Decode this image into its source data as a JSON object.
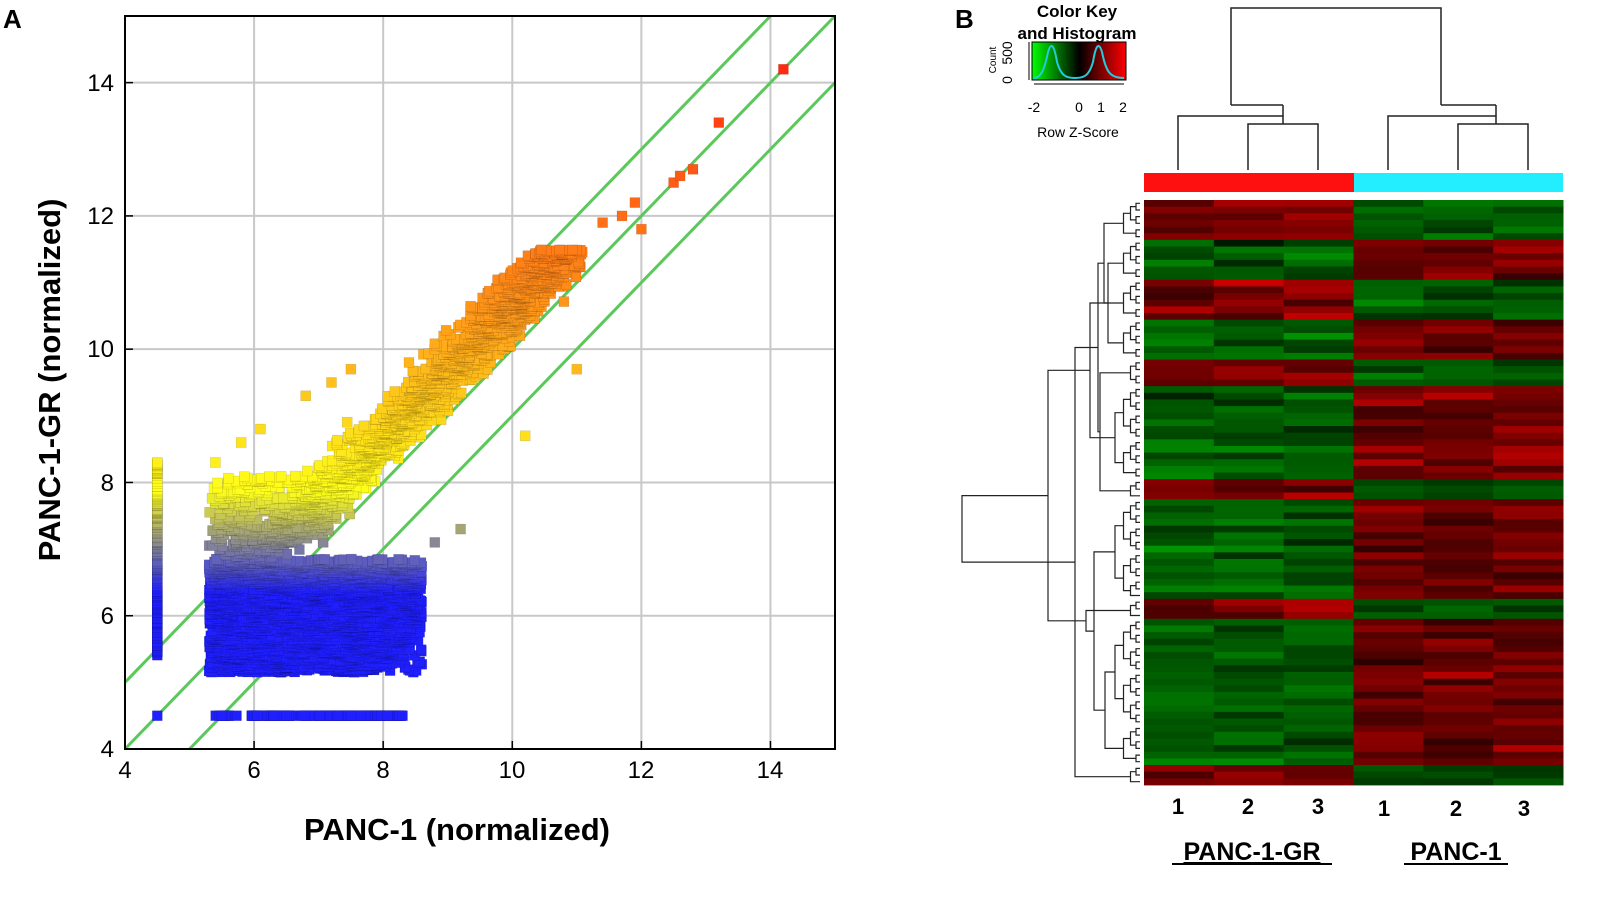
{
  "chart_data": [
    {
      "type": "scatter",
      "panel": "A",
      "xlabel": "PANC-1 (normalized)",
      "ylabel": "PANC-1-GR (normalized)",
      "xlim": [
        4,
        15
      ],
      "ylim": [
        4,
        15
      ],
      "xticks": [
        4,
        6,
        8,
        10,
        12,
        14
      ],
      "yticks": [
        4,
        6,
        8,
        10,
        12,
        14
      ],
      "grid": true,
      "reference_lines": [
        {
          "name": "y = x + 1",
          "offset": 1
        },
        {
          "name": "y = x",
          "offset": 0
        },
        {
          "name": "y = x - 1",
          "offset": -1
        }
      ],
      "line_color": "#5cc85c",
      "color_scale": [
        "#1f1fff",
        "#ffff1a",
        "#ff9a1a",
        "#ff2a10"
      ],
      "points_sample": [
        [
          14.2,
          14.2
        ],
        [
          13.2,
          13.4
        ],
        [
          12.8,
          12.7
        ],
        [
          12.6,
          12.6
        ],
        [
          12.5,
          12.5
        ],
        [
          11.9,
          12.2
        ],
        [
          12.0,
          11.8
        ],
        [
          11.7,
          12.0
        ],
        [
          11.4,
          11.9
        ],
        [
          10.8,
          11.2
        ],
        [
          10.3,
          11.1
        ],
        [
          9.9,
          10.8
        ],
        [
          10.1,
          10.4
        ],
        [
          9.4,
          10.1
        ],
        [
          9.1,
          9.9
        ],
        [
          8.8,
          10.0
        ],
        [
          8.4,
          9.8
        ],
        [
          7.5,
          9.7
        ],
        [
          7.2,
          9.5
        ],
        [
          6.8,
          9.3
        ],
        [
          6.1,
          8.8
        ],
        [
          5.8,
          8.6
        ],
        [
          5.4,
          8.3
        ],
        [
          4.5,
          8.3
        ],
        [
          10.2,
          8.7
        ],
        [
          11.0,
          9.7
        ],
        [
          9.2,
          7.3
        ],
        [
          8.8,
          7.1
        ],
        [
          8.0,
          5.5
        ],
        [
          8.4,
          5.6
        ],
        [
          4.5,
          4.5
        ],
        [
          5.5,
          4.5
        ],
        [
          6.5,
          4.5
        ],
        [
          7.5,
          4.5
        ],
        [
          8.3,
          4.5
        ]
      ]
    },
    {
      "type": "heatmap",
      "panel": "B",
      "color_key": {
        "title_line1": "Color Key",
        "title_line2": "and Histogram",
        "xlabel": "Row Z-Score",
        "ylabel": "Count",
        "ticks": [
          "-2",
          "0",
          "1",
          "2"
        ],
        "count_ticks": [
          "0",
          "500"
        ],
        "colors": [
          "#00ff00",
          "#000000",
          "#ff0000"
        ],
        "histogram_color": "#22ccdd"
      },
      "columns": [
        "1",
        "2",
        "3",
        "1",
        "2",
        "3"
      ],
      "groups": [
        {
          "name": "PANC-1-GR",
          "color": "#ff1010",
          "columns": [
            0,
            1,
            2
          ]
        },
        {
          "name": "PANC-1",
          "color": "#22eeff",
          "columns": [
            3,
            4,
            5
          ]
        }
      ],
      "value_range": [
        -2,
        2
      ],
      "row_blocks": [
        {
          "rows": 6,
          "gr_z": 1.2,
          "p_z": -1.2
        },
        {
          "rows": 6,
          "gr_z": -1.2,
          "p_z": 1.1
        },
        {
          "rows": 6,
          "gr_z": 1.3,
          "p_z": -1.0
        },
        {
          "rows": 6,
          "gr_z": -1.1,
          "p_z": 1.0
        },
        {
          "rows": 4,
          "gr_z": 1.2,
          "p_z": -1.1
        },
        {
          "rows": 14,
          "gr_z": -1.2,
          "p_z": 1.1
        },
        {
          "rows": 3,
          "gr_z": 1.2,
          "p_z": -1.0
        },
        {
          "rows": 15,
          "gr_z": -1.1,
          "p_z": 1.0
        },
        {
          "rows": 3,
          "gr_z": 1.2,
          "p_z": -1.1
        },
        {
          "rows": 22,
          "gr_z": -1.1,
          "p_z": 1.0
        },
        {
          "rows": 3,
          "gr_z": 1.1,
          "p_z": -1.0
        }
      ]
    }
  ],
  "panelA": {
    "letter": "A",
    "xlabel": "PANC-1 (normalized)",
    "ylabel": "PANC-1-GR (normalized)",
    "xticks": [
      "4",
      "6",
      "8",
      "10",
      "12",
      "14"
    ],
    "yticks": [
      "4",
      "6",
      "8",
      "10",
      "12",
      "14"
    ]
  },
  "panelB": {
    "letter": "B",
    "key_title_1": "Color Key",
    "key_title_2": "and Histogram",
    "key_xlabel": "Row Z-Score",
    "key_ylabel": "Count",
    "key_ticks": [
      "-2",
      "0",
      "1",
      "2"
    ],
    "key_count_ticks": [
      "0",
      "500"
    ],
    "col_labels": [
      "1",
      "2",
      "3",
      "1",
      "2",
      "3"
    ],
    "group_labels": [
      "PANC-1-GR",
      "PANC-1"
    ]
  }
}
